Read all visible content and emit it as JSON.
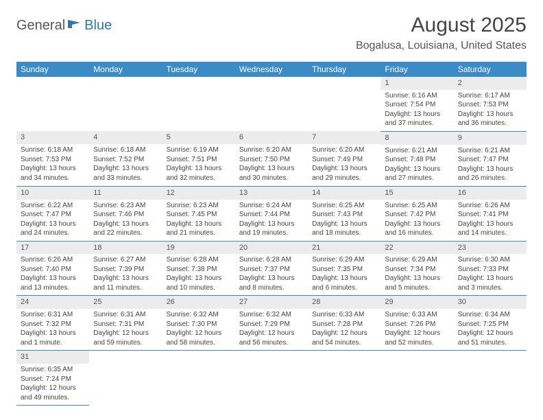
{
  "logo": {
    "text1": "General",
    "text2": "Blue"
  },
  "title": "August 2025",
  "location": "Bogalusa, Louisiana, United States",
  "colors": {
    "header_bg": "#3b8bc7",
    "header_text": "#ffffff",
    "daynum_bg": "#ececec",
    "cell_border": "#3b8bc7",
    "logo_blue": "#2e75b6",
    "text": "#444444"
  },
  "weekdays": [
    "Sunday",
    "Monday",
    "Tuesday",
    "Wednesday",
    "Thursday",
    "Friday",
    "Saturday"
  ],
  "weeks": [
    [
      null,
      null,
      null,
      null,
      null,
      {
        "n": "1",
        "sr": "Sunrise: 6:16 AM",
        "ss": "Sunset: 7:54 PM",
        "dl1": "Daylight: 13 hours",
        "dl2": "and 37 minutes."
      },
      {
        "n": "2",
        "sr": "Sunrise: 6:17 AM",
        "ss": "Sunset: 7:53 PM",
        "dl1": "Daylight: 13 hours",
        "dl2": "and 36 minutes."
      }
    ],
    [
      {
        "n": "3",
        "sr": "Sunrise: 6:18 AM",
        "ss": "Sunset: 7:53 PM",
        "dl1": "Daylight: 13 hours",
        "dl2": "and 34 minutes."
      },
      {
        "n": "4",
        "sr": "Sunrise: 6:18 AM",
        "ss": "Sunset: 7:52 PM",
        "dl1": "Daylight: 13 hours",
        "dl2": "and 33 minutes."
      },
      {
        "n": "5",
        "sr": "Sunrise: 6:19 AM",
        "ss": "Sunset: 7:51 PM",
        "dl1": "Daylight: 13 hours",
        "dl2": "and 32 minutes."
      },
      {
        "n": "6",
        "sr": "Sunrise: 6:20 AM",
        "ss": "Sunset: 7:50 PM",
        "dl1": "Daylight: 13 hours",
        "dl2": "and 30 minutes."
      },
      {
        "n": "7",
        "sr": "Sunrise: 6:20 AM",
        "ss": "Sunset: 7:49 PM",
        "dl1": "Daylight: 13 hours",
        "dl2": "and 29 minutes."
      },
      {
        "n": "8",
        "sr": "Sunrise: 6:21 AM",
        "ss": "Sunset: 7:48 PM",
        "dl1": "Daylight: 13 hours",
        "dl2": "and 27 minutes."
      },
      {
        "n": "9",
        "sr": "Sunrise: 6:21 AM",
        "ss": "Sunset: 7:47 PM",
        "dl1": "Daylight: 13 hours",
        "dl2": "and 26 minutes."
      }
    ],
    [
      {
        "n": "10",
        "sr": "Sunrise: 6:22 AM",
        "ss": "Sunset: 7:47 PM",
        "dl1": "Daylight: 13 hours",
        "dl2": "and 24 minutes."
      },
      {
        "n": "11",
        "sr": "Sunrise: 6:23 AM",
        "ss": "Sunset: 7:46 PM",
        "dl1": "Daylight: 13 hours",
        "dl2": "and 22 minutes."
      },
      {
        "n": "12",
        "sr": "Sunrise: 6:23 AM",
        "ss": "Sunset: 7:45 PM",
        "dl1": "Daylight: 13 hours",
        "dl2": "and 21 minutes."
      },
      {
        "n": "13",
        "sr": "Sunrise: 6:24 AM",
        "ss": "Sunset: 7:44 PM",
        "dl1": "Daylight: 13 hours",
        "dl2": "and 19 minutes."
      },
      {
        "n": "14",
        "sr": "Sunrise: 6:25 AM",
        "ss": "Sunset: 7:43 PM",
        "dl1": "Daylight: 13 hours",
        "dl2": "and 18 minutes."
      },
      {
        "n": "15",
        "sr": "Sunrise: 6:25 AM",
        "ss": "Sunset: 7:42 PM",
        "dl1": "Daylight: 13 hours",
        "dl2": "and 16 minutes."
      },
      {
        "n": "16",
        "sr": "Sunrise: 6:26 AM",
        "ss": "Sunset: 7:41 PM",
        "dl1": "Daylight: 13 hours",
        "dl2": "and 14 minutes."
      }
    ],
    [
      {
        "n": "17",
        "sr": "Sunrise: 6:26 AM",
        "ss": "Sunset: 7:40 PM",
        "dl1": "Daylight: 13 hours",
        "dl2": "and 13 minutes."
      },
      {
        "n": "18",
        "sr": "Sunrise: 6:27 AM",
        "ss": "Sunset: 7:39 PM",
        "dl1": "Daylight: 13 hours",
        "dl2": "and 11 minutes."
      },
      {
        "n": "19",
        "sr": "Sunrise: 6:28 AM",
        "ss": "Sunset: 7:38 PM",
        "dl1": "Daylight: 13 hours",
        "dl2": "and 10 minutes."
      },
      {
        "n": "20",
        "sr": "Sunrise: 6:28 AM",
        "ss": "Sunset: 7:37 PM",
        "dl1": "Daylight: 13 hours",
        "dl2": "and 8 minutes."
      },
      {
        "n": "21",
        "sr": "Sunrise: 6:29 AM",
        "ss": "Sunset: 7:35 PM",
        "dl1": "Daylight: 13 hours",
        "dl2": "and 6 minutes."
      },
      {
        "n": "22",
        "sr": "Sunrise: 6:29 AM",
        "ss": "Sunset: 7:34 PM",
        "dl1": "Daylight: 13 hours",
        "dl2": "and 5 minutes."
      },
      {
        "n": "23",
        "sr": "Sunrise: 6:30 AM",
        "ss": "Sunset: 7:33 PM",
        "dl1": "Daylight: 13 hours",
        "dl2": "and 3 minutes."
      }
    ],
    [
      {
        "n": "24",
        "sr": "Sunrise: 6:31 AM",
        "ss": "Sunset: 7:32 PM",
        "dl1": "Daylight: 13 hours",
        "dl2": "and 1 minute."
      },
      {
        "n": "25",
        "sr": "Sunrise: 6:31 AM",
        "ss": "Sunset: 7:31 PM",
        "dl1": "Daylight: 12 hours",
        "dl2": "and 59 minutes."
      },
      {
        "n": "26",
        "sr": "Sunrise: 6:32 AM",
        "ss": "Sunset: 7:30 PM",
        "dl1": "Daylight: 12 hours",
        "dl2": "and 58 minutes."
      },
      {
        "n": "27",
        "sr": "Sunrise: 6:32 AM",
        "ss": "Sunset: 7:29 PM",
        "dl1": "Daylight: 12 hours",
        "dl2": "and 56 minutes."
      },
      {
        "n": "28",
        "sr": "Sunrise: 6:33 AM",
        "ss": "Sunset: 7:28 PM",
        "dl1": "Daylight: 12 hours",
        "dl2": "and 54 minutes."
      },
      {
        "n": "29",
        "sr": "Sunrise: 6:33 AM",
        "ss": "Sunset: 7:26 PM",
        "dl1": "Daylight: 12 hours",
        "dl2": "and 52 minutes."
      },
      {
        "n": "30",
        "sr": "Sunrise: 6:34 AM",
        "ss": "Sunset: 7:25 PM",
        "dl1": "Daylight: 12 hours",
        "dl2": "and 51 minutes."
      }
    ],
    [
      {
        "n": "31",
        "sr": "Sunrise: 6:35 AM",
        "ss": "Sunset: 7:24 PM",
        "dl1": "Daylight: 12 hours",
        "dl2": "and 49 minutes."
      },
      null,
      null,
      null,
      null,
      null,
      null
    ]
  ]
}
